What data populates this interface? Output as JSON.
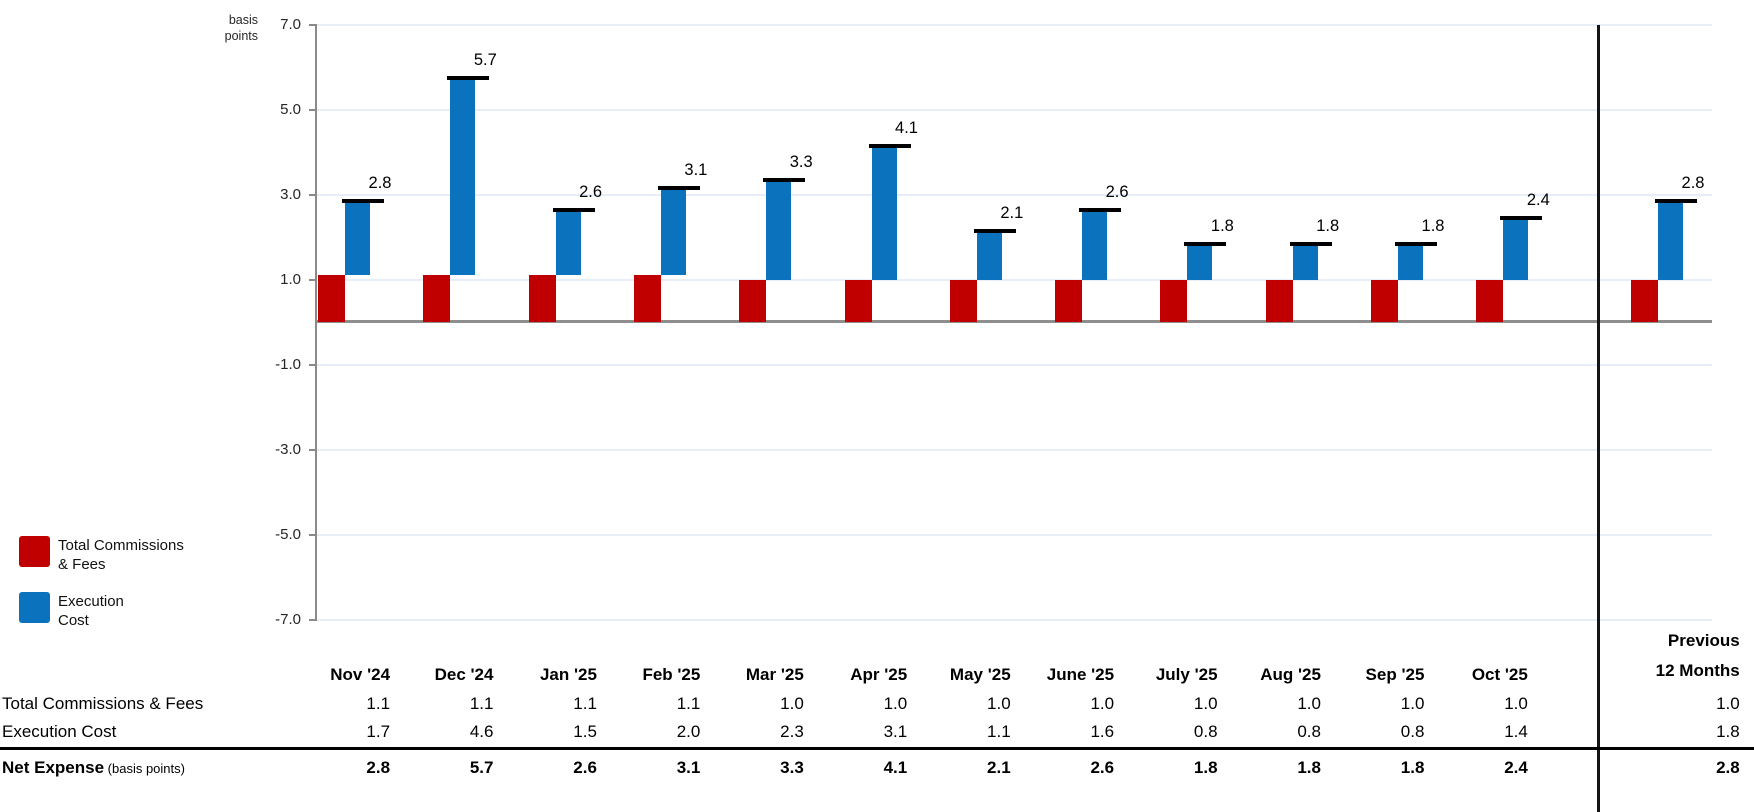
{
  "chart": {
    "unit_label_line1": "basis",
    "unit_label_line2": "points",
    "y_ticks": [
      7,
      5,
      3,
      1,
      -1,
      -3,
      -5,
      -7
    ]
  },
  "legend": {
    "items": [
      {
        "line1": "Total Commissions",
        "line2": "& Fees",
        "color": "#c00000"
      },
      {
        "line1": "Execution",
        "line2": "Cost",
        "color": "#0b72be"
      }
    ]
  },
  "chart_data": {
    "type": "bar",
    "subtype": "waterfall-stacked-offset",
    "title": "",
    "ylabel": "basis points",
    "ylim": [
      -7,
      7
    ],
    "grid_interval": 2,
    "grid": true,
    "legend_position": "left-bottom",
    "categories": [
      "Nov '24",
      "Dec '24",
      "Jan '25",
      "Feb '25",
      "Mar '25",
      "Apr '25",
      "May '25",
      "June '25",
      "July '25",
      "Aug '25",
      "Sep '25",
      "Oct '25",
      "Previous 12 Months"
    ],
    "series": [
      {
        "name": "Total Commissions & Fees",
        "color": "#c00000",
        "values": [
          1.1,
          1.1,
          1.1,
          1.1,
          1.0,
          1.0,
          1.0,
          1.0,
          1.0,
          1.0,
          1.0,
          1.0,
          1.0
        ]
      },
      {
        "name": "Execution Cost",
        "color": "#0b72be",
        "values": [
          1.7,
          4.6,
          1.5,
          2.0,
          2.3,
          3.1,
          1.1,
          1.6,
          0.8,
          0.8,
          0.8,
          1.4,
          1.8
        ]
      }
    ],
    "totals": [
      2.8,
      5.7,
      2.6,
      3.1,
      3.3,
      4.1,
      2.1,
      2.6,
      1.8,
      1.8,
      1.8,
      2.4,
      2.8
    ]
  },
  "table": {
    "month_headers": [
      "Nov '24",
      "Dec '24",
      "Jan '25",
      "Feb '25",
      "Mar '25",
      "Apr '25",
      "May '25",
      "June '25",
      "July '25",
      "Aug '25",
      "Sep '25",
      "Oct '25"
    ],
    "previous_header_line1": "Previous",
    "previous_header_line2": "12 Months",
    "rows": [
      {
        "label": "Total Commissions & Fees",
        "label_suffix": "",
        "values": [
          1.1,
          1.1,
          1.1,
          1.1,
          1.0,
          1.0,
          1.0,
          1.0,
          1.0,
          1.0,
          1.0,
          1.0
        ],
        "previous": 1.0,
        "bold": false
      },
      {
        "label": "Execution Cost",
        "label_suffix": "",
        "values": [
          1.7,
          4.6,
          1.5,
          2.0,
          2.3,
          3.1,
          1.1,
          1.6,
          0.8,
          0.8,
          0.8,
          1.4
        ],
        "previous": 1.8,
        "bold": false
      },
      {
        "label": "Net Expense",
        "label_suffix": "(basis points)",
        "values": [
          2.8,
          5.7,
          2.6,
          3.1,
          3.3,
          4.1,
          2.1,
          2.6,
          1.8,
          1.8,
          1.8,
          2.4
        ],
        "previous": 2.8,
        "bold": true
      }
    ]
  }
}
